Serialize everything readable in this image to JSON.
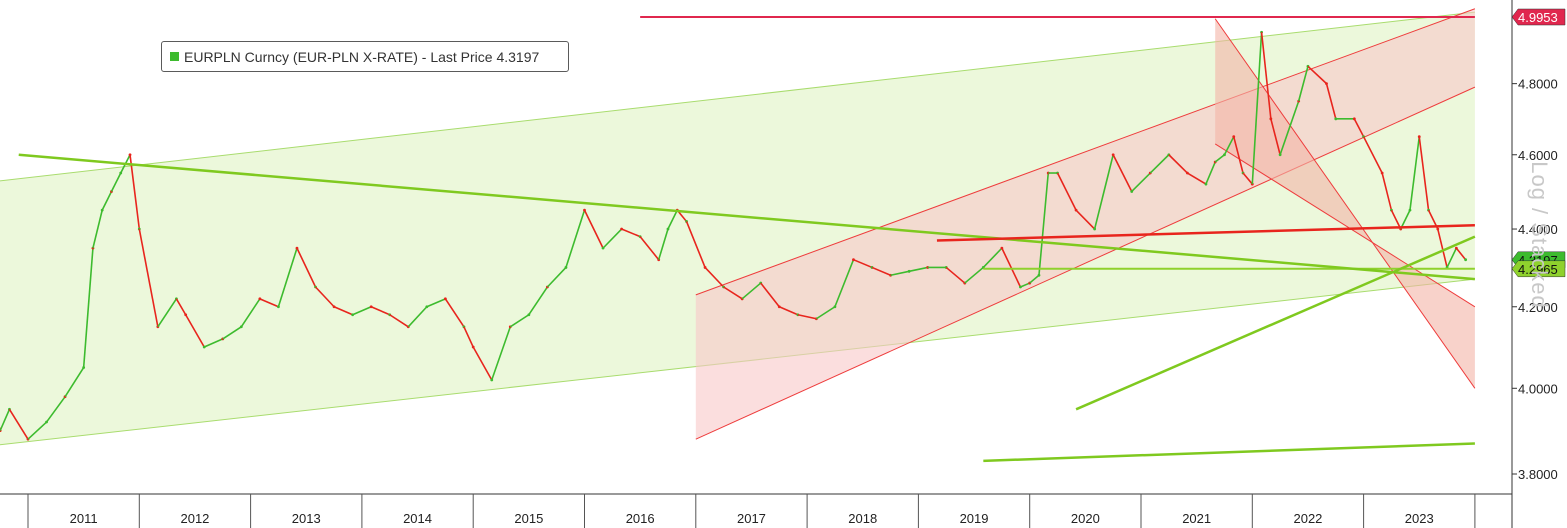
{
  "legend": {
    "text": "EURPLN Curncy (EUR-PLN X-RATE) - Last Price 4.3197",
    "color": "#3dbb2e"
  },
  "scale_note": "Log / Stacked",
  "chart_data": {
    "type": "line",
    "title": "",
    "series": [
      {
        "name": "EURPLN Curncy (EUR-PLN X-RATE) - Last Price",
        "x": [
          "2010-07",
          "2010-09",
          "2010-10",
          "2010-11",
          "2011-01",
          "2011-03",
          "2011-05",
          "2011-07",
          "2011-08",
          "2011-09",
          "2011-10",
          "2011-11",
          "2011-12",
          "2012-01",
          "2012-03",
          "2012-05",
          "2012-06",
          "2012-08",
          "2012-10",
          "2012-12",
          "2013-02",
          "2013-04",
          "2013-06",
          "2013-08",
          "2013-10",
          "2013-12",
          "2014-02",
          "2014-04",
          "2014-06",
          "2014-08",
          "2014-10",
          "2014-12",
          "2015-01",
          "2015-03",
          "2015-05",
          "2015-07",
          "2015-09",
          "2015-11",
          "2016-01",
          "2016-03",
          "2016-05",
          "2016-07",
          "2016-09",
          "2016-10",
          "2016-11",
          "2016-12",
          "2017-02",
          "2017-04",
          "2017-06",
          "2017-08",
          "2017-10",
          "2017-12",
          "2018-02",
          "2018-04",
          "2018-06",
          "2018-08",
          "2018-10",
          "2018-12",
          "2019-02",
          "2019-04",
          "2019-06",
          "2019-08",
          "2019-10",
          "2019-12",
          "2020-01",
          "2020-02",
          "2020-03",
          "2020-04",
          "2020-06",
          "2020-08",
          "2020-10",
          "2020-12",
          "2021-02",
          "2021-04",
          "2021-06",
          "2021-08",
          "2021-09",
          "2021-10",
          "2021-11",
          "2021-12",
          "2022-01",
          "2022-02",
          "2022-03",
          "2022-04",
          "2022-06",
          "2022-07",
          "2022-09",
          "2022-10",
          "2022-12",
          "2023-01",
          "2023-03",
          "2023-04",
          "2023-05",
          "2023-06",
          "2023-07",
          "2023-08",
          "2023-09",
          "2023-10",
          "2023-11",
          "2023-12"
        ],
        "values": [
          4.05,
          3.98,
          3.9,
          3.95,
          3.88,
          3.92,
          3.98,
          4.05,
          4.35,
          4.45,
          4.5,
          4.55,
          4.6,
          4.4,
          4.15,
          4.22,
          4.18,
          4.1,
          4.12,
          4.15,
          4.22,
          4.2,
          4.35,
          4.25,
          4.2,
          4.18,
          4.2,
          4.18,
          4.15,
          4.2,
          4.22,
          4.15,
          4.1,
          4.02,
          4.15,
          4.18,
          4.25,
          4.3,
          4.45,
          4.35,
          4.4,
          4.38,
          4.32,
          4.4,
          4.45,
          4.42,
          4.3,
          4.25,
          4.22,
          4.26,
          4.2,
          4.18,
          4.17,
          4.2,
          4.32,
          4.3,
          4.28,
          4.29,
          4.3,
          4.3,
          4.26,
          4.3,
          4.35,
          4.25,
          4.26,
          4.28,
          4.55,
          4.55,
          4.45,
          4.4,
          4.6,
          4.5,
          4.55,
          4.6,
          4.55,
          4.52,
          4.58,
          4.6,
          4.65,
          4.55,
          4.52,
          4.95,
          4.7,
          4.6,
          4.75,
          4.85,
          4.8,
          4.7,
          4.7,
          4.65,
          4.55,
          4.45,
          4.4,
          4.45,
          4.65,
          4.45,
          4.4,
          4.3,
          4.35,
          4.32
        ],
        "color_up": "#3dbb2e",
        "color_down": "#e8251d"
      }
    ],
    "x_ticks": [
      "2011",
      "2012",
      "2013",
      "2014",
      "2015",
      "2016",
      "2017",
      "2018",
      "2019",
      "2020",
      "2021",
      "2022",
      "2023"
    ],
    "y_ticks": [
      "3.8000",
      "4.0000",
      "4.2000",
      "4.4000",
      "4.6000",
      "4.8000"
    ],
    "ylim": [
      3.8,
      5.0
    ],
    "xlim": [
      "2010-07",
      "2024-01"
    ],
    "y_scale": "log",
    "grid": false,
    "legend_position": "top-left",
    "price_labels": [
      {
        "text": "4.9953",
        "value": 4.9953,
        "color": "#e0274e"
      },
      {
        "text": "4.3197",
        "value": 4.3197,
        "color": "#3dbb2e"
      },
      {
        "text": "4.2965",
        "value": 4.2965,
        "color": "#8fd12d"
      }
    ],
    "annotations": {
      "horizontal_lines": [
        {
          "value": 4.9953,
          "from": "2016-07",
          "to": "2024-01",
          "color": "#e0274e"
        },
        {
          "value": 4.2965,
          "from": "2019-08",
          "to": "2024-01",
          "color": "#8fd12d"
        }
      ],
      "trend_lines": [
        {
          "from": [
            "2010-12",
            4.6
          ],
          "to": [
            "2024-01",
            4.27
          ],
          "color": "#7fc91f"
        },
        {
          "from": [
            "2019-03",
            4.37
          ],
          "to": [
            "2024-01",
            4.41
          ],
          "color": "#e8251d"
        },
        {
          "from": [
            "2020-06",
            3.95
          ],
          "to": [
            "2024-01",
            4.38
          ],
          "color": "#7fc91f"
        },
        {
          "from": [
            "2019-08",
            3.83
          ],
          "to": [
            "2024-01",
            3.87
          ],
          "color": "#7fc91f"
        }
      ],
      "channels": [
        {
          "upper": [
            [
              "2010-07",
              4.52
            ],
            [
              "2024-01",
              5.01
            ]
          ],
          "lower": [
            [
              "2010-07",
              3.86
            ],
            [
              "2024-01",
              4.27
            ]
          ],
          "color": "#e6f5cf",
          "edge": "#a9dc6e"
        },
        {
          "upper": [
            [
              "2017-01",
              4.23
            ],
            [
              "2024-01",
              5.02
            ]
          ],
          "lower": [
            [
              "2017-01",
              3.88
            ],
            [
              "2024-01",
              4.79
            ]
          ],
          "color": "#f9c8c8",
          "edge": "#ee3c3c"
        },
        {
          "upper": [
            [
              "2021-09",
              4.99
            ],
            [
              "2024-01",
              4.0
            ]
          ],
          "lower": [
            [
              "2021-09",
              4.63
            ],
            [
              "2024-01",
              4.2
            ]
          ],
          "color": "#f4b4a6",
          "edge": "#ee3c3c"
        }
      ]
    }
  }
}
